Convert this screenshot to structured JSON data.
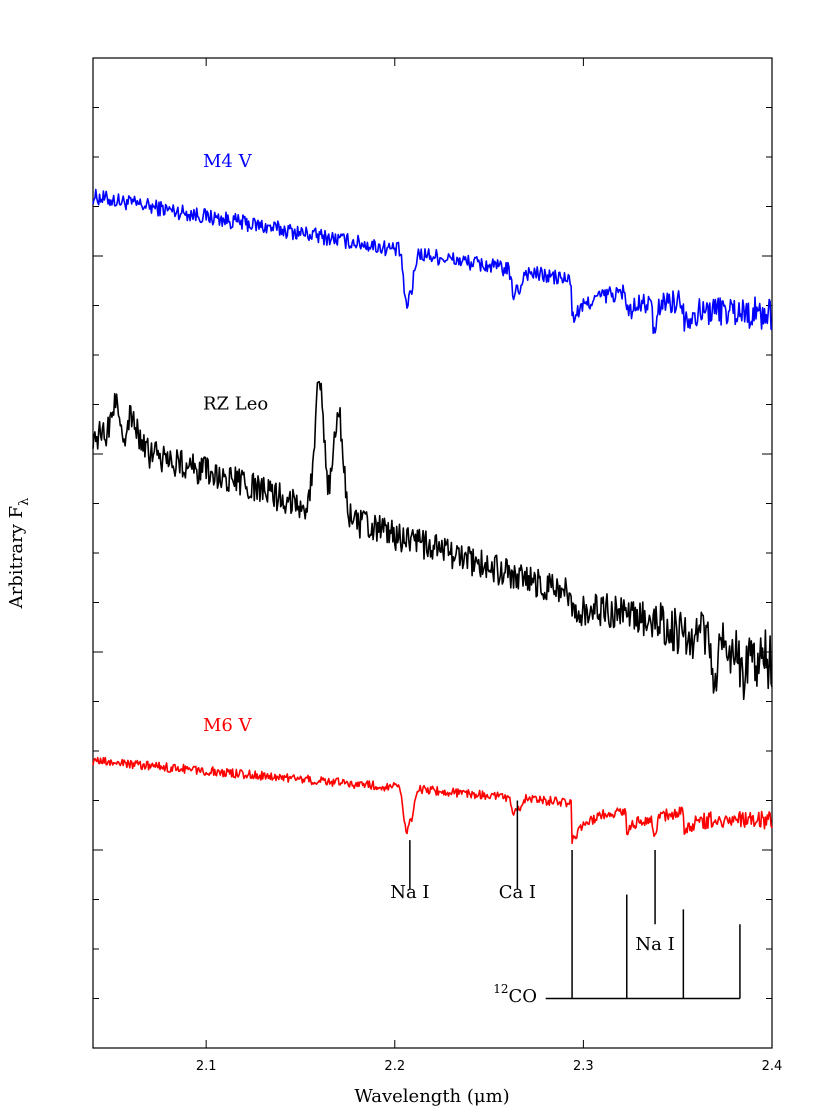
{
  "chart_data": {
    "type": "line",
    "xlabel": "Wavelength (μm)",
    "ylabel": "Arbitrary F",
    "ylabel_sub": "λ",
    "xlim": [
      2.04,
      2.4
    ],
    "ylim": [
      0,
      20
    ],
    "x_ticks": [
      2.1,
      2.2,
      2.3,
      2.4
    ],
    "x_tick_labels": [
      "2.1",
      "2.2",
      "2.3",
      "2.4"
    ],
    "y_ticks_shown_without_labels": true,
    "series": [
      {
        "name": "M4 V",
        "color": "#0000ff",
        "y_start": 17.2,
        "y_end": 14.8,
        "noise": 0.16,
        "features": [
          {
            "x": 2.206,
            "depth": 1.1
          },
          {
            "x": 2.209,
            "depth": 0.7
          },
          {
            "x": 2.263,
            "depth": 0.45
          },
          {
            "x": 2.266,
            "depth": 0.35
          },
          {
            "x": 2.294,
            "step": 0.8
          },
          {
            "x": 2.323,
            "step": 0.4
          },
          {
            "x": 2.338,
            "depth": 0.6
          },
          {
            "x": 2.353,
            "step": 0.35
          }
        ]
      },
      {
        "name": "RZ Leo",
        "color": "#000000",
        "y_start": 12.4,
        "y_end": 7.8,
        "noise": 0.3,
        "emission": [
          {
            "x": 2.052,
            "height": 0.8
          },
          {
            "x": 2.061,
            "height": 0.65
          },
          {
            "x": 2.16,
            "height": 2.5
          },
          {
            "x": 2.17,
            "height": 2.1
          }
        ],
        "features": [
          {
            "x": 2.294,
            "step": 0.4
          },
          {
            "x": 2.37,
            "depth": 0.8
          },
          {
            "x": 2.385,
            "depth": 0.9
          }
        ]
      },
      {
        "name": "M6 V",
        "color": "#ff0000",
        "y_start": 5.8,
        "y_end": 4.6,
        "noise": 0.09,
        "features": [
          {
            "x": 2.206,
            "depth": 0.85
          },
          {
            "x": 2.209,
            "depth": 0.55
          },
          {
            "x": 2.263,
            "depth": 0.25
          },
          {
            "x": 2.266,
            "depth": 0.2
          },
          {
            "x": 2.294,
            "step": 0.75
          },
          {
            "x": 2.323,
            "step": 0.4
          },
          {
            "x": 2.338,
            "depth": 0.3
          },
          {
            "x": 2.353,
            "step": 0.3
          }
        ]
      }
    ],
    "annotations": [
      {
        "label": "Na I",
        "x": 2.208,
        "line_from": 4.2,
        "line_to": 3.2
      },
      {
        "label": "Ca I",
        "x": 2.265,
        "line_from": 5.0,
        "line_to": 3.2
      },
      {
        "label": "Na I",
        "x": 2.338,
        "line_from": 4.0,
        "line_to": 2.5
      }
    ],
    "co_label_sup": "12",
    "co_label": "CO",
    "co_bandheads": [
      {
        "x": 2.294,
        "top": 4.0
      },
      {
        "x": 2.323,
        "top": 3.1
      },
      {
        "x": 2.353,
        "top": 2.8
      },
      {
        "x": 2.383,
        "top": 2.5
      }
    ],
    "co_baseline": 1.0,
    "co_bar_start": 2.28
  }
}
